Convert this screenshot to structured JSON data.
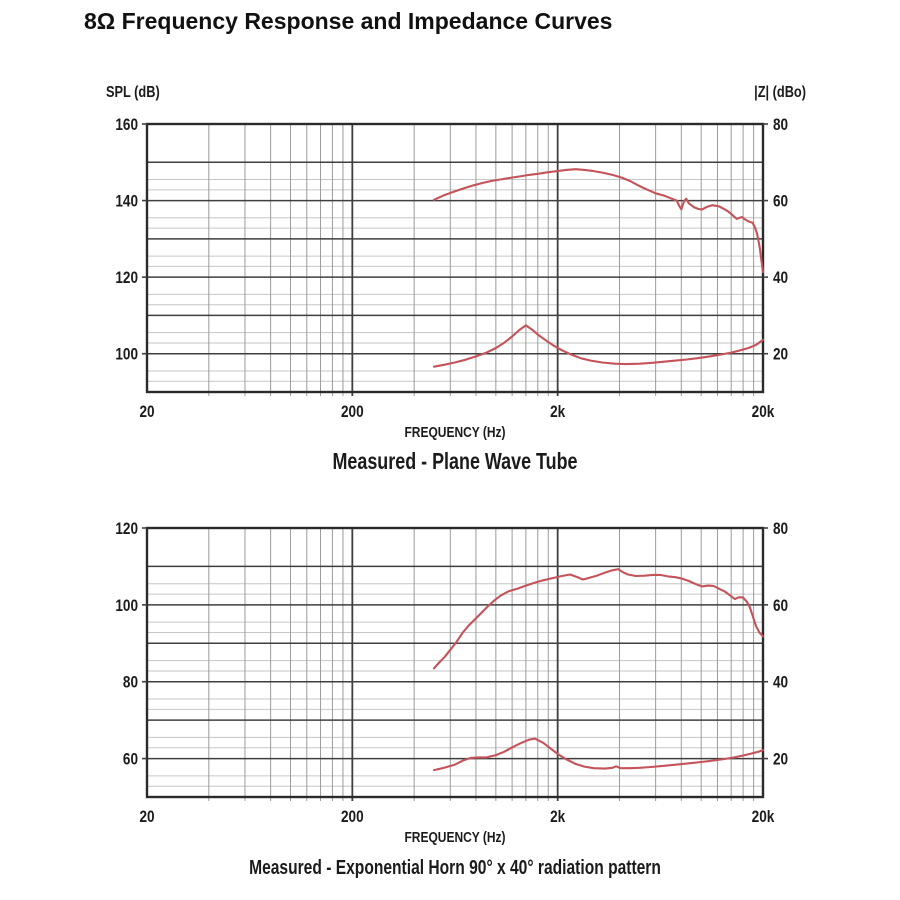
{
  "page": {
    "title": "8Ω Frequency Response and Impedance Curves"
  },
  "colors": {
    "curve": "#c4535a",
    "grid_major": "#3f3f3f",
    "grid_minor_h": "#c6c6c6",
    "grid_minor_v": "#9b9b9b",
    "border": "#2b2b2b",
    "text": "#1b1b1b"
  },
  "chart_data": [
    {
      "type": "line",
      "title": "Measured - Plane Wave Tube",
      "xlabel": "FREQUENCY (Hz)",
      "ylabel_left": "SPL (dB)",
      "ylabel_right": "|Z| (dBo)",
      "x_scale": "log",
      "x_range_hz": [
        20,
        20000
      ],
      "x_tick_values": [
        20,
        200,
        2000,
        20000
      ],
      "x_tick_labels": [
        "20",
        "200",
        "2k",
        "20k"
      ],
      "y_left_max": 160,
      "y_left_min": 90,
      "y_left_ticks": [
        160,
        140,
        120,
        100
      ],
      "y_right_ticks": [
        80,
        60,
        40,
        20
      ],
      "y_right_offset": 80,
      "grid": "log-x, 10dB major / 5dB minor y",
      "legend": "none",
      "series": [
        {
          "name": "SPL",
          "axis": "left",
          "unit": "dB",
          "points": [
            [
              500,
              140.2
            ],
            [
              560,
              141.4
            ],
            [
              630,
              142.4
            ],
            [
              700,
              143.2
            ],
            [
              780,
              144.0
            ],
            [
              860,
              144.6
            ],
            [
              950,
              145.1
            ],
            [
              1050,
              145.5
            ],
            [
              1160,
              145.9
            ],
            [
              1300,
              146.3
            ],
            [
              1450,
              146.7
            ],
            [
              1600,
              147.0
            ],
            [
              1800,
              147.4
            ],
            [
              2000,
              147.7
            ],
            [
              2200,
              148.0
            ],
            [
              2450,
              148.2
            ],
            [
              2700,
              148.0
            ],
            [
              3000,
              147.7
            ],
            [
              3300,
              147.3
            ],
            [
              3700,
              146.7
            ],
            [
              4100,
              146.0
            ],
            [
              4500,
              145.1
            ],
            [
              5000,
              143.8
            ],
            [
              5500,
              142.8
            ],
            [
              6000,
              141.9
            ],
            [
              6600,
              141.3
            ],
            [
              7200,
              140.5
            ],
            [
              7600,
              140.0
            ],
            [
              7800,
              138.7
            ],
            [
              8000,
              137.7
            ],
            [
              8250,
              139.8
            ],
            [
              8450,
              140.5
            ],
            [
              8700,
              139.3
            ],
            [
              9200,
              138.3
            ],
            [
              9700,
              137.8
            ],
            [
              10100,
              137.7
            ],
            [
              10700,
              138.4
            ],
            [
              11300,
              138.8
            ],
            [
              12200,
              138.5
            ],
            [
              12800,
              137.9
            ],
            [
              13500,
              137.2
            ],
            [
              14200,
              136.2
            ],
            [
              14900,
              135.2
            ],
            [
              15800,
              135.7
            ],
            [
              16300,
              135.1
            ],
            [
              16800,
              134.7
            ],
            [
              17300,
              134.4
            ],
            [
              17800,
              134.2
            ],
            [
              18300,
              132.9
            ],
            [
              18700,
              131.4
            ],
            [
              19000,
              129.6
            ],
            [
              19300,
              127.6
            ],
            [
              19600,
              124.8
            ],
            [
              20000,
              121.3
            ]
          ]
        },
        {
          "name": "Impedance",
          "axis": "right",
          "unit": "dBo",
          "points": [
            [
              500,
              16.6
            ],
            [
              560,
              17.1
            ],
            [
              630,
              17.7
            ],
            [
              710,
              18.4
            ],
            [
              800,
              19.3
            ],
            [
              900,
              20.3
            ],
            [
              1000,
              21.5
            ],
            [
              1100,
              22.9
            ],
            [
              1200,
              24.5
            ],
            [
              1300,
              26.2
            ],
            [
              1400,
              27.4
            ],
            [
              1500,
              26.3
            ],
            [
              1600,
              25.0
            ],
            [
              1750,
              23.5
            ],
            [
              1900,
              22.2
            ],
            [
              2100,
              20.9
            ],
            [
              2350,
              19.7
            ],
            [
              2600,
              18.8
            ],
            [
              2900,
              18.2
            ],
            [
              3300,
              17.7
            ],
            [
              3800,
              17.4
            ],
            [
              4300,
              17.3
            ],
            [
              5000,
              17.4
            ],
            [
              5700,
              17.6
            ],
            [
              6500,
              17.9
            ],
            [
              7500,
              18.2
            ],
            [
              8500,
              18.5
            ],
            [
              9500,
              18.8
            ],
            [
              11000,
              19.3
            ],
            [
              12500,
              19.8
            ],
            [
              14000,
              20.3
            ],
            [
              15500,
              20.9
            ],
            [
              17000,
              21.5
            ],
            [
              18500,
              22.3
            ],
            [
              20000,
              23.6
            ]
          ]
        }
      ]
    },
    {
      "type": "line",
      "title": "Measured - Exponential Horn 90° x 40° radiation pattern",
      "xlabel": "FREQUENCY (Hz)",
      "ylabel_left": "",
      "ylabel_right": "",
      "x_scale": "log",
      "x_range_hz": [
        20,
        20000
      ],
      "x_tick_values": [
        20,
        200,
        2000,
        20000
      ],
      "x_tick_labels": [
        "20",
        "200",
        "2k",
        "20k"
      ],
      "y_left_max": 120,
      "y_left_min": 50,
      "y_left_ticks": [
        120,
        100,
        80,
        60
      ],
      "y_right_ticks": [
        80,
        60,
        40,
        20
      ],
      "y_right_offset": 40,
      "grid": "log-x, 10dB major / 5dB minor y",
      "legend": "none",
      "series": [
        {
          "name": "SPL",
          "axis": "left",
          "unit": "dB",
          "points": [
            [
              500,
              83.5
            ],
            [
              530,
              85.0
            ],
            [
              565,
              86.5
            ],
            [
              600,
              88.3
            ],
            [
              640,
              90.2
            ],
            [
              690,
              92.8
            ],
            [
              740,
              94.7
            ],
            [
              790,
              96.2
            ],
            [
              850,
              97.9
            ],
            [
              910,
              99.5
            ],
            [
              980,
              101.1
            ],
            [
              1060,
              102.5
            ],
            [
              1150,
              103.5
            ],
            [
              1270,
              104.2
            ],
            [
              1400,
              105.0
            ],
            [
              1550,
              105.8
            ],
            [
              1700,
              106.4
            ],
            [
              1900,
              107.0
            ],
            [
              2100,
              107.5
            ],
            [
              2300,
              107.9
            ],
            [
              2500,
              107.2
            ],
            [
              2650,
              106.6
            ],
            [
              2800,
              106.9
            ],
            [
              3100,
              107.6
            ],
            [
              3400,
              108.4
            ],
            [
              3700,
              109.0
            ],
            [
              3950,
              109.3
            ],
            [
              4150,
              108.5
            ],
            [
              4400,
              107.9
            ],
            [
              4800,
              107.5
            ],
            [
              5300,
              107.6
            ],
            [
              5800,
              107.8
            ],
            [
              6300,
              107.8
            ],
            [
              6900,
              107.4
            ],
            [
              7500,
              107.2
            ],
            [
              8100,
              106.8
            ],
            [
              8700,
              106.2
            ],
            [
              9400,
              105.4
            ],
            [
              10100,
              104.8
            ],
            [
              10800,
              105.0
            ],
            [
              11500,
              104.9
            ],
            [
              12200,
              104.2
            ],
            [
              13000,
              103.5
            ],
            [
              13800,
              102.5
            ],
            [
              14600,
              101.5
            ],
            [
              15300,
              102.0
            ],
            [
              16000,
              101.9
            ],
            [
              16700,
              100.8
            ],
            [
              17300,
              99.2
            ],
            [
              17900,
              96.8
            ],
            [
              18500,
              94.5
            ],
            [
              19200,
              92.8
            ],
            [
              20000,
              91.8
            ]
          ]
        },
        {
          "name": "Impedance",
          "axis": "right",
          "unit": "dBo",
          "points": [
            [
              500,
              17.0
            ],
            [
              560,
              17.6
            ],
            [
              630,
              18.4
            ],
            [
              700,
              19.6
            ],
            [
              760,
              20.2
            ],
            [
              830,
              20.3
            ],
            [
              900,
              20.3
            ],
            [
              1000,
              20.9
            ],
            [
              1100,
              21.8
            ],
            [
              1200,
              22.9
            ],
            [
              1320,
              24.0
            ],
            [
              1450,
              24.9
            ],
            [
              1550,
              25.2
            ],
            [
              1700,
              24.1
            ],
            [
              1850,
              22.6
            ],
            [
              2000,
              21.2
            ],
            [
              2200,
              19.8
            ],
            [
              2450,
              18.6
            ],
            [
              2700,
              17.9
            ],
            [
              3000,
              17.5
            ],
            [
              3400,
              17.4
            ],
            [
              3700,
              17.6
            ],
            [
              3850,
              18.0
            ],
            [
              4050,
              17.5
            ],
            [
              4500,
              17.5
            ],
            [
              5000,
              17.6
            ],
            [
              5700,
              17.8
            ],
            [
              6500,
              18.1
            ],
            [
              7500,
              18.4
            ],
            [
              8500,
              18.7
            ],
            [
              10000,
              19.1
            ],
            [
              11500,
              19.5
            ],
            [
              13000,
              19.9
            ],
            [
              14500,
              20.3
            ],
            [
              16000,
              20.8
            ],
            [
              17500,
              21.3
            ],
            [
              19000,
              21.8
            ],
            [
              20000,
              22.2
            ]
          ]
        }
      ]
    }
  ]
}
